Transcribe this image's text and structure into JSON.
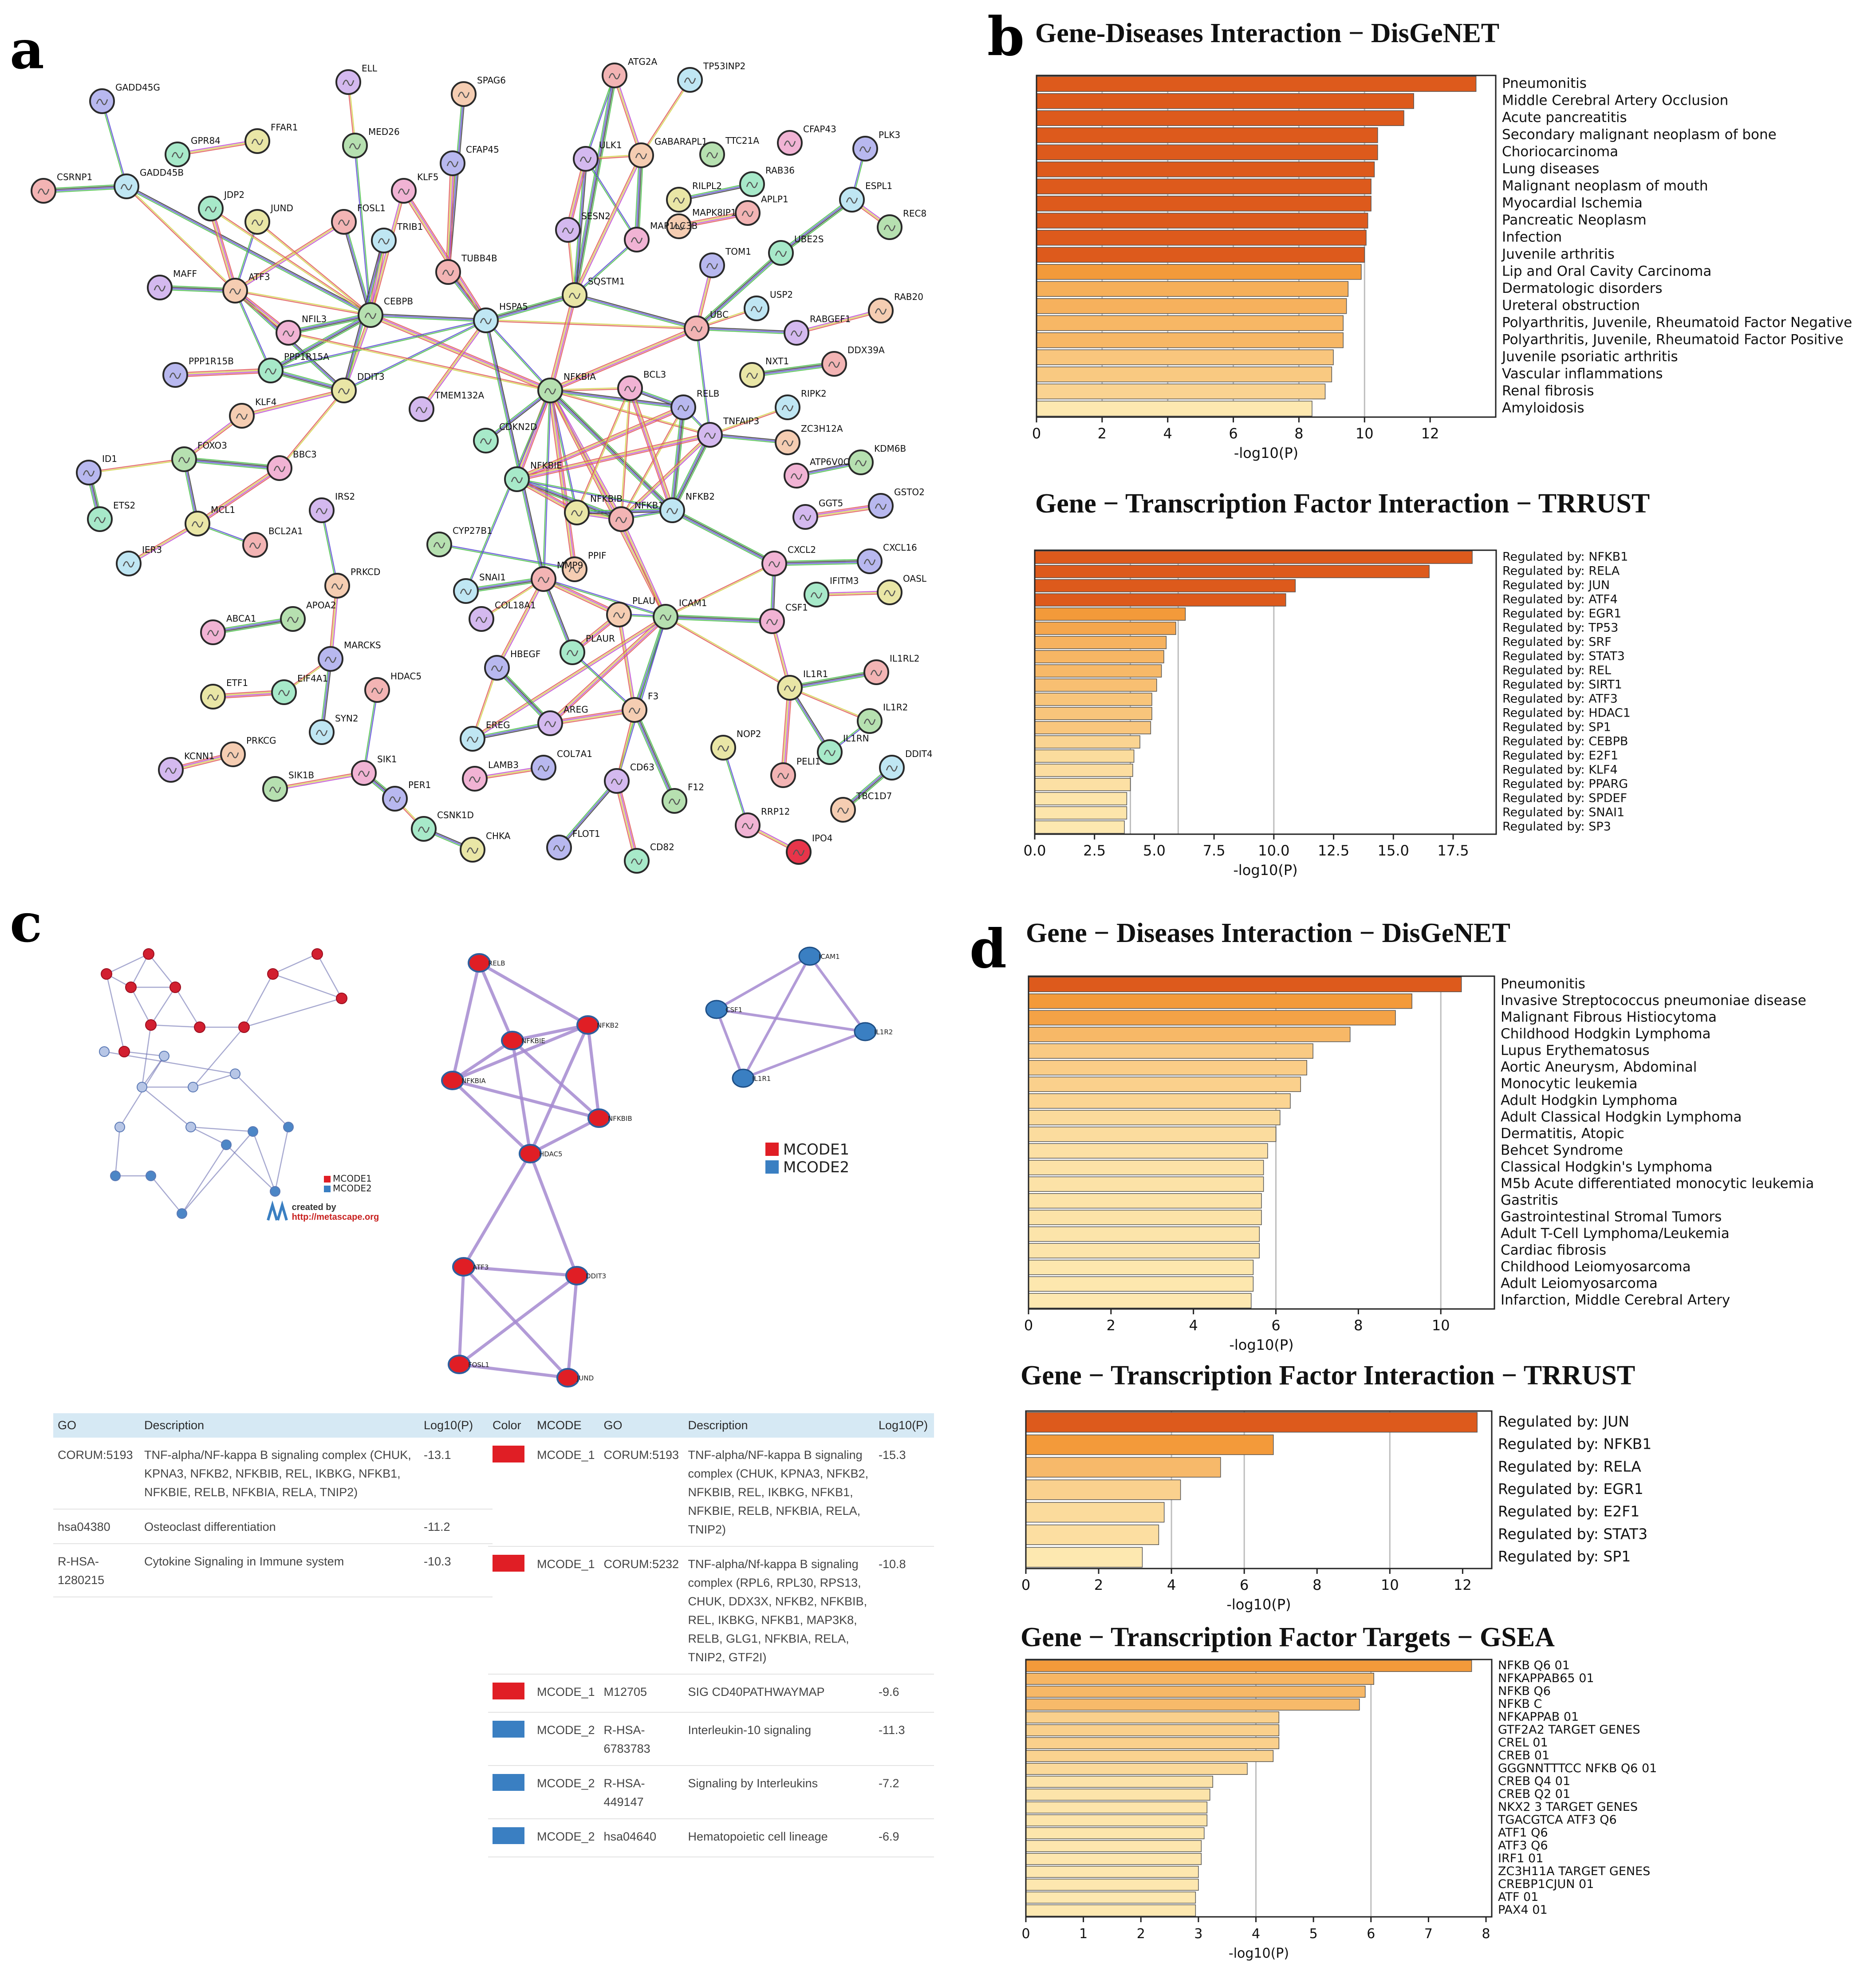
{
  "panels": {
    "a": "a",
    "b": "b",
    "c": "c",
    "d": "d"
  },
  "colors": {
    "bar_dark": "#dd5a1c",
    "bar_mid": "#f39a3a",
    "bar_light": "#fde8b0",
    "mcode1": "#e01e25",
    "mcode2": "#3a7fc2",
    "table_header": "#d6e9f4"
  },
  "network_a": {
    "nodes": [
      "GADD45G",
      "GPR84",
      "FFAR1",
      "CSRNP1",
      "GADD45B",
      "ELL",
      "SPAG6",
      "MED26",
      "KLF5",
      "CFAP45",
      "JDP2",
      "JUND",
      "FOSL1",
      "TRIB1",
      "MAFF",
      "ATF3",
      "CEBPB",
      "NFIL3",
      "PPP1R15B",
      "PPP1R15A",
      "DDIT3",
      "TUBB4B",
      "HSPA5",
      "TMEM132A",
      "KLF4",
      "FOXO3",
      "BBC3",
      "ID1",
      "ETS2",
      "MCL1",
      "BCL2A1",
      "IER3",
      "IRS2",
      "PRKCD",
      "APOA2",
      "ABCA1",
      "MARCKS",
      "EIF4A1",
      "ETF1",
      "HDAC5",
      "SYN2",
      "KCNN1",
      "PRKCG",
      "SIK1B",
      "SIK1",
      "PER1",
      "CSNK1D",
      "CHKA",
      "ATG2A",
      "TP53INP2",
      "ULK1",
      "GABARAPL1",
      "TTC21A",
      "CFAP43",
      "PLK3",
      "RAB36",
      "RILPL2",
      "APLP1",
      "ESPL1",
      "SESN2",
      "MAPK8IP1",
      "REC8",
      "MAP1LC3B",
      "TOM1",
      "UBE2S",
      "SQSTM1",
      "UBC",
      "USP2",
      "RABGEF1",
      "RAB20",
      "NFKBIA",
      "BCL3",
      "RELB",
      "CDKN2D",
      "NXT1",
      "DDX39A",
      "RIPK2",
      "TNFAIP3",
      "ZC3H12A",
      "KDM6B",
      "ATP6V0C",
      "GSTO2",
      "NFKBIE",
      "NFKBIB",
      "NFKB1",
      "NFKB2",
      "GGT5",
      "PPIF",
      "CYP27B1",
      "CXCL2",
      "CXCL16",
      "IFITM3",
      "OASL",
      "MMP9",
      "SNAI1",
      "COL18A1",
      "PLAU",
      "ICAM1",
      "CSF1",
      "HBEGF",
      "PLAUR",
      "IL1R1",
      "IL1RL2",
      "EREG",
      "AREG",
      "F3",
      "IL1R2",
      "LAMB3",
      "COL7A1",
      "IL1RN",
      "NOP2",
      "PELI1",
      "DDIT4",
      "CD63",
      "TBC1D7",
      "F12",
      "RRP12",
      "FLOT1",
      "CD82",
      "IPO4"
    ]
  },
  "network_c_small": {
    "legend_mcode1": "MCODE1",
    "legend_mcode2": "MCODE2",
    "created_by": "created by",
    "site": "http://metascape.org"
  },
  "network_c": {
    "mcode1_nodes": [
      "RELB",
      "NFKB2",
      "NFKBIE",
      "NFKBIA",
      "NFKBIB",
      "HDAC5",
      "ATF3",
      "DDIT3",
      "FOSL1",
      "JUND"
    ],
    "mcode2_nodes": [
      "ICAM1",
      "CSF1",
      "IL1R2",
      "IL1R1"
    ],
    "legend": [
      "MCODE1",
      "MCODE2"
    ]
  },
  "tables": {
    "left": {
      "headers": [
        "GO",
        "Description",
        "Log10(P)"
      ],
      "rows": [
        {
          "go": [
            "CORUM:5193"
          ],
          "desc": [
            "TNF-alpha/NF-kappa B signaling complex (CHUK,",
            "KPNA3, NFKB2, NFKBIB, REL, IKBKG, NFKB1,",
            "NFKBIE, RELB, NFKBIA, RELA, TNIP2)"
          ],
          "p": "-13.1"
        },
        {
          "go": [
            "hsa04380"
          ],
          "desc": [
            "Osteoclast differentiation"
          ],
          "p": "-11.2"
        },
        {
          "go": [
            "R-HSA-",
            "1280215"
          ],
          "desc": [
            "Cytokine Signaling in Immune system"
          ],
          "p": "-10.3"
        }
      ]
    },
    "right": {
      "headers": [
        "Color",
        "MCODE",
        "GO",
        "Description",
        "Log10(P)"
      ],
      "rows": [
        {
          "color": "#e01e25",
          "mcode": "MCODE_1",
          "go": [
            "CORUM:5193"
          ],
          "desc": [
            "TNF-alpha/NF-kappa B signaling",
            "complex (CHUK, KPNA3, NFKB2,",
            "NFKBIB, REL, IKBKG, NFKB1,",
            "NFKBIE, RELB, NFKBIA, RELA,",
            "TNIP2)"
          ],
          "p": "-15.3"
        },
        {
          "color": "#e01e25",
          "mcode": "MCODE_1",
          "go": [
            "CORUM:5232"
          ],
          "desc": [
            "TNF-alpha/Nf-kappa B signaling",
            "complex (RPL6, RPL30, RPS13,",
            "CHUK, DDX3X, NFKB2, NFKBIB,",
            "REL, IKBKG, NFKB1, MAP3K8,",
            "RELB, GLG1, NFKBIA, RELA,",
            "TNIP2, GTF2I)"
          ],
          "p": "-10.8"
        },
        {
          "color": "#e01e25",
          "mcode": "MCODE_1",
          "go": [
            "M12705"
          ],
          "desc": [
            "SIG CD40PATHWAYMAP"
          ],
          "p": "-9.6"
        },
        {
          "color": "#3a7fc2",
          "mcode": "MCODE_2",
          "go": [
            "R-HSA-",
            "6783783"
          ],
          "desc": [
            "Interleukin-10 signaling"
          ],
          "p": "-11.3"
        },
        {
          "color": "#3a7fc2",
          "mcode": "MCODE_2",
          "go": [
            "R-HSA-",
            "449147"
          ],
          "desc": [
            "Signaling by Interleukins"
          ],
          "p": "-7.2"
        },
        {
          "color": "#3a7fc2",
          "mcode": "MCODE_2",
          "go": [
            "hsa04640"
          ],
          "desc": [
            "Hematopoietic cell lineage"
          ],
          "p": "-6.9"
        }
      ]
    }
  },
  "chart_data": [
    {
      "id": "b1",
      "type": "bar",
      "orientation": "horizontal",
      "title": "Gene-Diseases Interaction − DisGeNET",
      "xlabel": "-log10(P)",
      "xlim": [
        0,
        14
      ],
      "xticks": [
        0,
        2,
        4,
        6,
        8,
        10,
        12
      ],
      "tick_labels": [
        "0",
        "2",
        "4",
        "6",
        "8",
        "10",
        "12"
      ],
      "gridlines": [
        2,
        4,
        6,
        8,
        10
      ],
      "categories": [
        "Pneumonitis",
        "Middle Cerebral Artery Occlusion",
        "Acute pancreatitis",
        "Secondary malignant neoplasm of bone",
        "Choriocarcinoma",
        "Lung diseases",
        "Malignant neoplasm of mouth",
        "Myocardial Ischemia",
        "Pancreatic Neoplasm",
        "Infection",
        "Juvenile arthritis",
        "Lip and Oral Cavity Carcinoma",
        "Dermatologic disorders",
        "Ureteral obstruction",
        "Polyarthritis, Juvenile, Rheumatoid Factor Negative",
        "Polyarthritis, Juvenile, Rheumatoid Factor Positive",
        "Juvenile psoriatic arthritis",
        "Vascular inflammations",
        "Renal fibrosis",
        "Amyloidosis"
      ],
      "values": [
        13.4,
        11.5,
        11.2,
        10.4,
        10.4,
        10.3,
        10.2,
        10.2,
        10.1,
        10.05,
        10.0,
        9.9,
        9.5,
        9.45,
        9.35,
        9.35,
        9.05,
        9.0,
        8.8,
        8.4
      ]
    },
    {
      "id": "b2",
      "type": "bar",
      "orientation": "horizontal",
      "title": "Gene − Transcription Factor Interaction − TRRUST",
      "xlabel": "-log10(P)",
      "xlim": [
        0,
        19.3
      ],
      "xticks": [
        0,
        2.5,
        5,
        7.5,
        10,
        12.5,
        15,
        17.5
      ],
      "tick_labels": [
        "0.0",
        "2.5",
        "5.0",
        "7.5",
        "10.0",
        "12.5",
        "15.0",
        "17.5"
      ],
      "gridlines": [
        4,
        6,
        10
      ],
      "categories": [
        "Regulated by: NFKB1",
        "Regulated by: RELA",
        "Regulated by: JUN",
        "Regulated by: ATF4",
        "Regulated by: EGR1",
        "Regulated by: TP53",
        "Regulated by: SRF",
        "Regulated by: STAT3",
        "Regulated by: REL",
        "Regulated by: SIRT1",
        "Regulated by: ATF3",
        "Regulated by: HDAC1",
        "Regulated by: SP1",
        "Regulated by: CEBPB",
        "Regulated by: E2F1",
        "Regulated by: KLF4",
        "Regulated by: PPARG",
        "Regulated by: SPDEF",
        "Regulated by: SNAI1",
        "Regulated by: SP3"
      ],
      "values": [
        18.3,
        16.5,
        10.9,
        10.5,
        6.3,
        5.9,
        5.5,
        5.4,
        5.3,
        5.1,
        4.9,
        4.9,
        4.85,
        4.4,
        4.15,
        4.1,
        4.0,
        3.85,
        3.85,
        3.75
      ]
    },
    {
      "id": "d1",
      "type": "bar",
      "orientation": "horizontal",
      "title": "Gene − Diseases Interaction − DisGeNET",
      "xlabel": "-log10(P)",
      "xlim": [
        0,
        11.3
      ],
      "xticks": [
        0,
        2,
        4,
        6,
        8,
        10
      ],
      "tick_labels": [
        "0",
        "2",
        "4",
        "6",
        "8",
        "10"
      ],
      "gridlines": [
        6,
        10
      ],
      "categories": [
        "Pneumonitis",
        "Invasive Streptococcus pneumoniae disease",
        "Malignant Fibrous Histiocytoma",
        "Childhood Hodgkin Lymphoma",
        "Lupus Erythematosus",
        "Aortic Aneurysm, Abdominal",
        "Monocytic leukemia",
        "Adult Hodgkin Lymphoma",
        "Adult Classical Hodgkin Lymphoma",
        "Dermatitis, Atopic",
        "Behcet Syndrome",
        "Classical Hodgkin's Lymphoma",
        "M5b Acute differentiated monocytic leukemia",
        "Gastritis",
        "Gastrointestinal Stromal Tumors",
        "Adult T-Cell Lymphoma/Leukemia",
        "Cardiac fibrosis",
        "Childhood Leiomyosarcoma",
        "Adult Leiomyosarcoma",
        "Infarction, Middle Cerebral Artery"
      ],
      "values": [
        10.5,
        9.3,
        8.9,
        7.8,
        6.9,
        6.75,
        6.6,
        6.35,
        6.1,
        6.0,
        5.8,
        5.7,
        5.7,
        5.65,
        5.65,
        5.6,
        5.6,
        5.45,
        5.45,
        5.4
      ]
    },
    {
      "id": "d2",
      "type": "bar",
      "orientation": "horizontal",
      "title": "Gene − Transcription Factor Interaction − TRRUST",
      "xlabel": "-log10(P)",
      "xlim": [
        0,
        12.8
      ],
      "xticks": [
        0,
        2,
        4,
        6,
        8,
        10,
        12
      ],
      "tick_labels": [
        "0",
        "2",
        "4",
        "6",
        "8",
        "10",
        "12"
      ],
      "gridlines": [
        4,
        6,
        10
      ],
      "categories": [
        "Regulated by: JUN",
        "Regulated by: NFKB1",
        "Regulated by: RELA",
        "Regulated by: EGR1",
        "Regulated by: E2F1",
        "Regulated by: STAT3",
        "Regulated by: SP1"
      ],
      "values": [
        12.4,
        6.8,
        5.35,
        4.25,
        3.8,
        3.65,
        3.2
      ]
    },
    {
      "id": "d3",
      "type": "bar",
      "orientation": "horizontal",
      "title": "Gene − Transcription Factor Targets − GSEA",
      "xlabel": "-log10(P)",
      "xlim": [
        0,
        8.1
      ],
      "xticks": [
        0,
        1,
        2,
        3,
        4,
        5,
        6,
        7,
        8
      ],
      "tick_labels": [
        "0",
        "1",
        "2",
        "3",
        "4",
        "5",
        "6",
        "7",
        "8"
      ],
      "gridlines": [
        4,
        6
      ],
      "categories": [
        "NFKB Q6 01",
        "NFKAPPAB65 01",
        "NFKB Q6",
        "NFKB C",
        "NFKAPPAB 01",
        "GTF2A2 TARGET GENES",
        "CREL 01",
        "CREB 01",
        "GGGNNTTTCC NFKB Q6 01",
        "CREB Q4 01",
        "CREB Q2 01",
        "NKX2 3 TARGET GENES",
        "TGACGTCA ATF3 Q6",
        "ATF1 Q6",
        "ATF3 Q6",
        "IRF1 01",
        "ZC3H11A TARGET GENES",
        "CREBP1CJUN 01",
        "ATF 01",
        "PAX4 01"
      ],
      "values": [
        7.75,
        6.05,
        5.9,
        5.8,
        4.4,
        4.4,
        4.4,
        4.3,
        3.85,
        3.25,
        3.2,
        3.15,
        3.15,
        3.1,
        3.05,
        3.05,
        3.0,
        3.0,
        2.95,
        2.95
      ]
    }
  ]
}
